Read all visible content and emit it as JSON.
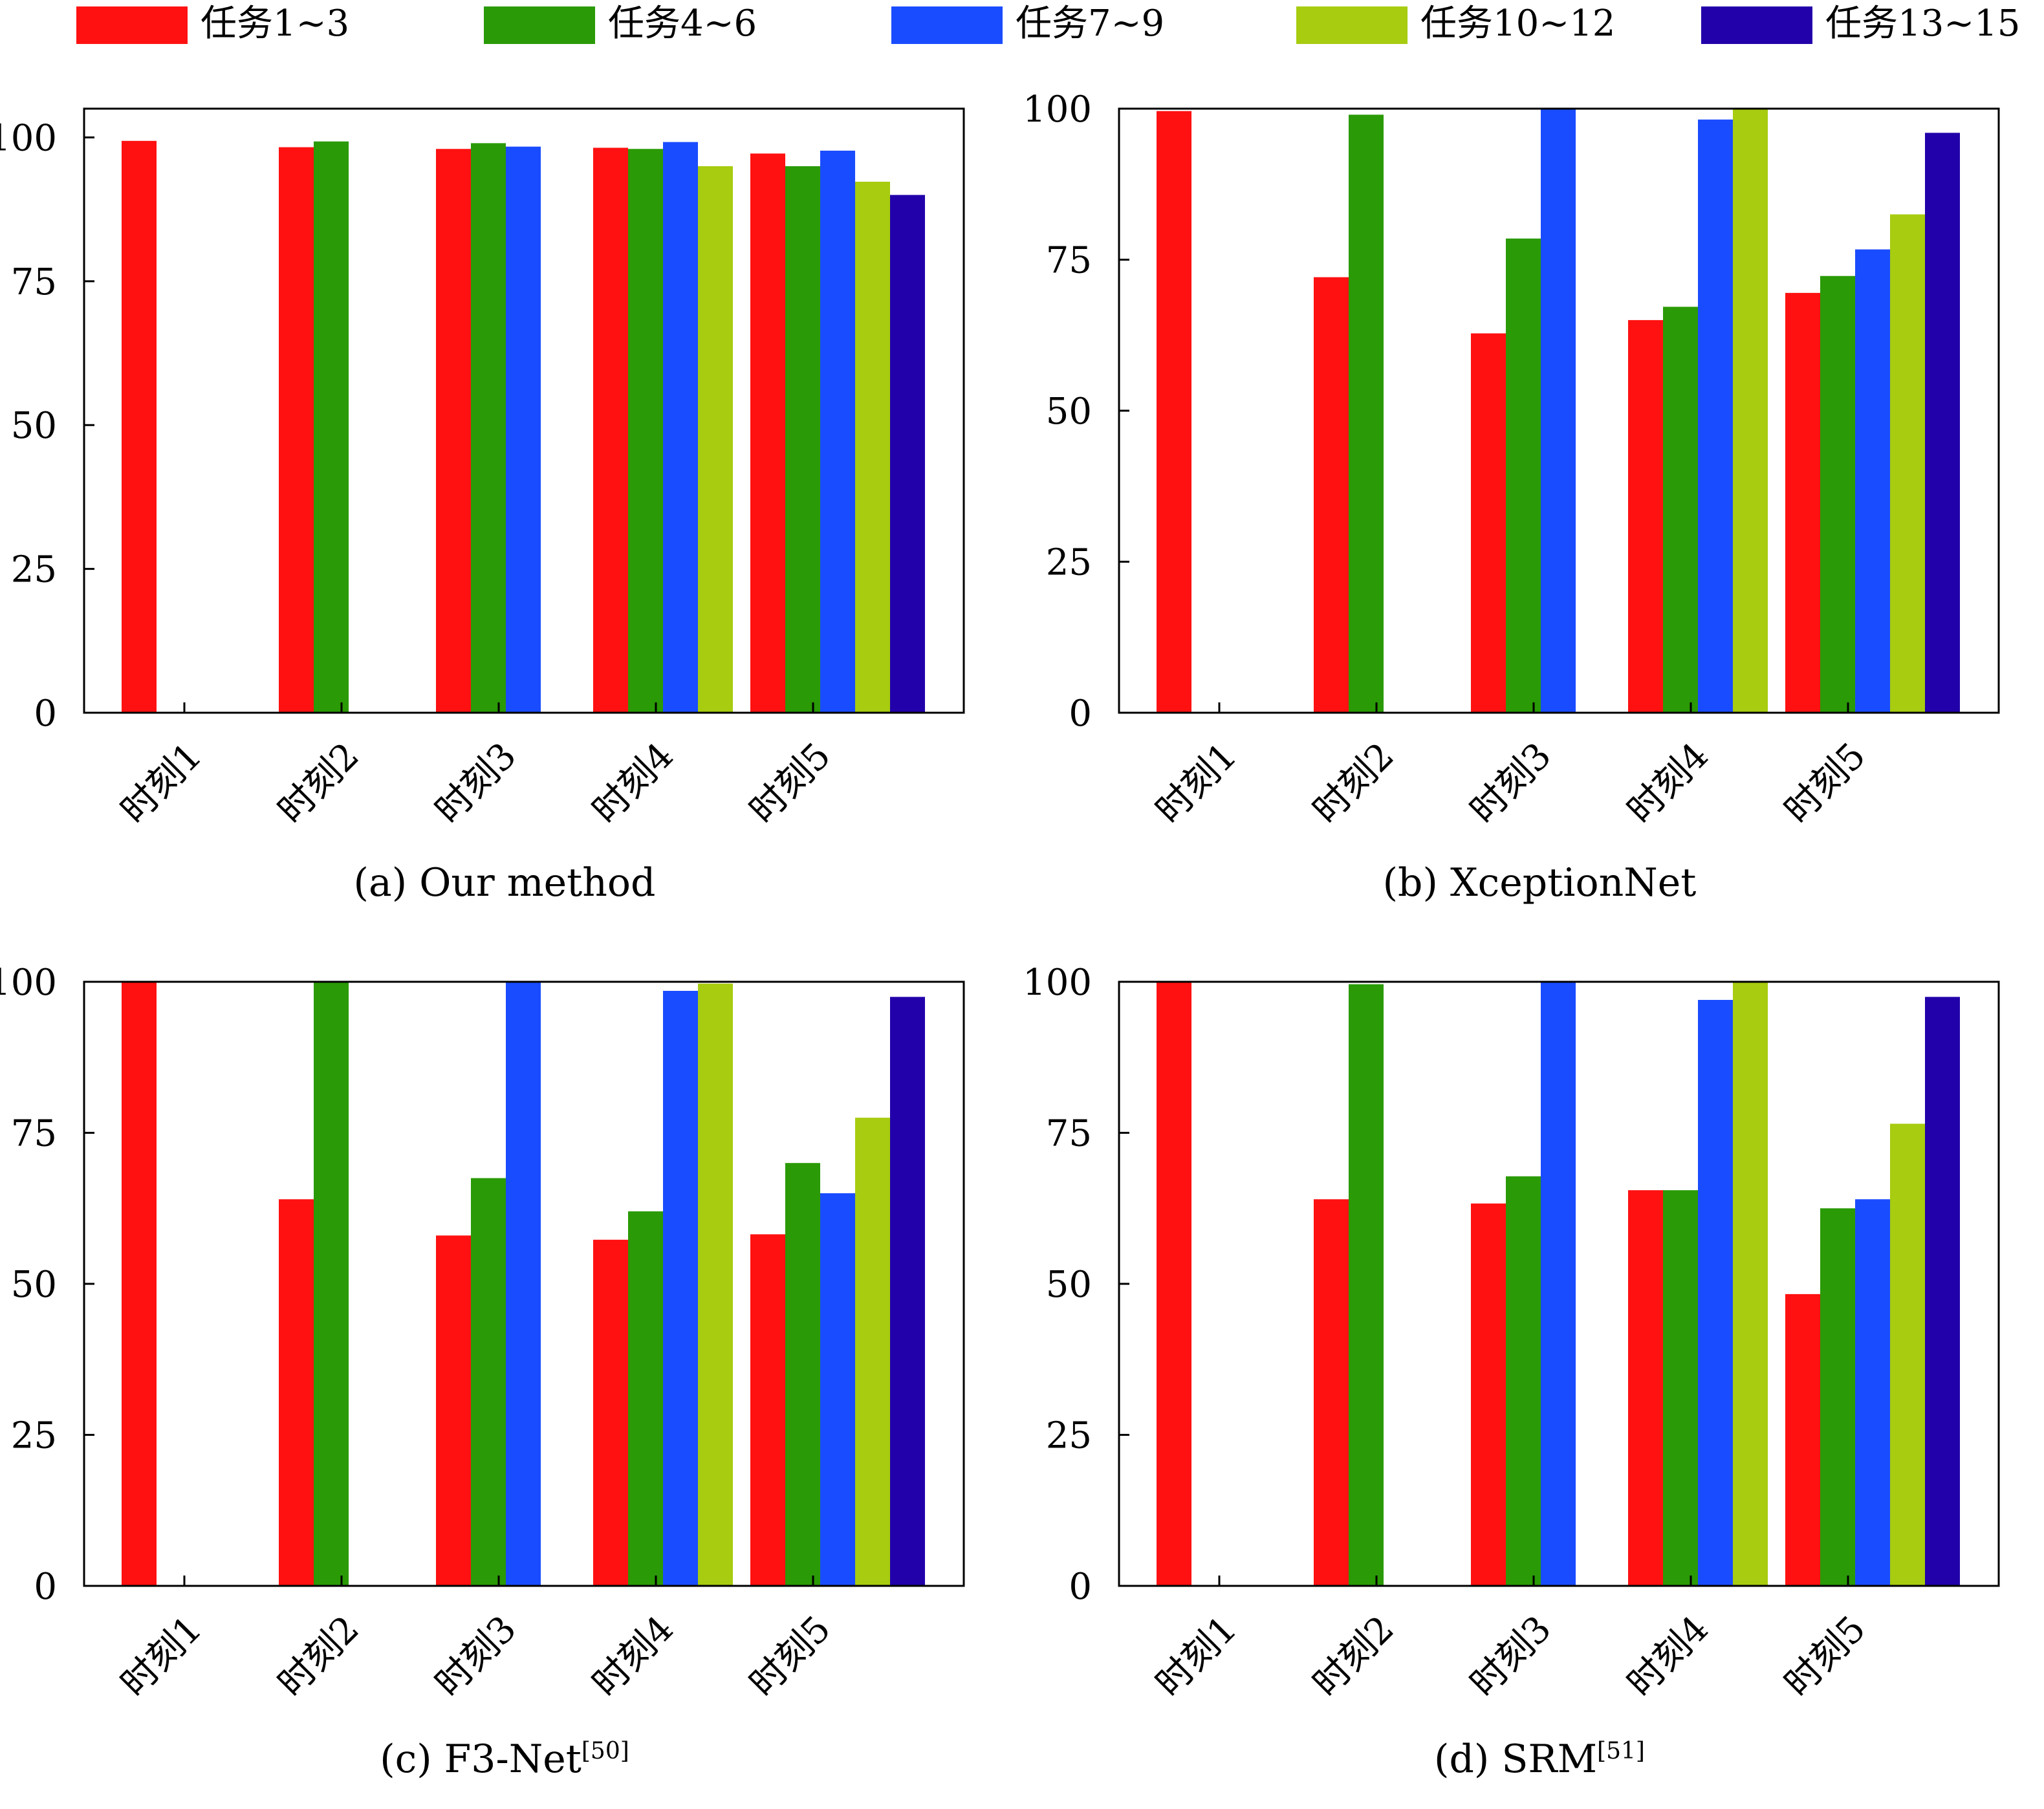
{
  "legend": {
    "items": [
      {
        "label": "任务1~3",
        "color": "#ff1111"
      },
      {
        "label": "任务4~6",
        "color": "#2a9a06"
      },
      {
        "label": "任务7~9",
        "color": "#1a4cff"
      },
      {
        "label": "任务10~12",
        "color": "#a7cc10"
      },
      {
        "label": "任务13~15",
        "color": "#2200aa"
      }
    ]
  },
  "chart_data": [
    {
      "type": "bar",
      "caption": "(a) Our method",
      "caption_sup": "",
      "categories": [
        "时刻1",
        "时刻2",
        "时刻3",
        "时刻4",
        "时刻5"
      ],
      "yticks": [
        "0",
        "25",
        "50",
        "75",
        "100"
      ],
      "ylim": [
        0,
        105
      ],
      "series": [
        {
          "name": "任务1~3",
          "values": [
            99.4,
            98.3,
            98.0,
            98.2,
            97.2
          ]
        },
        {
          "name": "任务4~6",
          "values": [
            null,
            99.3,
            99.0,
            98.0,
            95.0
          ]
        },
        {
          "name": "任务7~9",
          "values": [
            null,
            null,
            98.4,
            99.2,
            97.7
          ]
        },
        {
          "name": "任务10~12",
          "values": [
            null,
            null,
            null,
            95.0,
            92.3
          ]
        },
        {
          "name": "任务13~15",
          "values": [
            null,
            null,
            null,
            null,
            90.0
          ]
        }
      ]
    },
    {
      "type": "bar",
      "caption": "(b) XceptionNet",
      "caption_sup": "",
      "categories": [
        "时刻1",
        "时刻2",
        "时刻3",
        "时刻4",
        "时刻5"
      ],
      "yticks": [
        "0",
        "25",
        "50",
        "75",
        "100"
      ],
      "ylim": [
        0,
        100
      ],
      "series": [
        {
          "name": "任务1~3",
          "values": [
            99.6,
            72.1,
            62.8,
            65.0,
            69.5
          ]
        },
        {
          "name": "任务4~6",
          "values": [
            null,
            99.0,
            78.5,
            67.2,
            72.3
          ]
        },
        {
          "name": "任务7~9",
          "values": [
            null,
            null,
            100.0,
            98.2,
            76.7
          ]
        },
        {
          "name": "任务10~12",
          "values": [
            null,
            null,
            null,
            100.0,
            82.5
          ]
        },
        {
          "name": "任务13~15",
          "values": [
            null,
            null,
            null,
            null,
            96.0
          ]
        }
      ]
    },
    {
      "type": "bar",
      "caption": "(c) F3-Net",
      "caption_sup": "[50]",
      "categories": [
        "时刻1",
        "时刻2",
        "时刻3",
        "时刻4",
        "时刻5"
      ],
      "yticks": [
        "0",
        "25",
        "50",
        "75",
        "100"
      ],
      "ylim": [
        0,
        100
      ],
      "series": [
        {
          "name": "任务1~3",
          "values": [
            100.0,
            64.0,
            58.0,
            57.3,
            58.2
          ]
        },
        {
          "name": "任务4~6",
          "values": [
            null,
            100.0,
            67.5,
            62.0,
            70.0
          ]
        },
        {
          "name": "任务7~9",
          "values": [
            null,
            null,
            100.0,
            98.5,
            65.0
          ]
        },
        {
          "name": "任务10~12",
          "values": [
            null,
            null,
            null,
            99.7,
            77.5
          ]
        },
        {
          "name": "任务13~15",
          "values": [
            null,
            null,
            null,
            null,
            97.5
          ]
        }
      ]
    },
    {
      "type": "bar",
      "caption": "(d) SRM",
      "caption_sup": "[51]",
      "categories": [
        "时刻1",
        "时刻2",
        "时刻3",
        "时刻4",
        "时刻5"
      ],
      "yticks": [
        "0",
        "25",
        "50",
        "75",
        "100"
      ],
      "ylim": [
        0,
        100
      ],
      "series": [
        {
          "name": "任务1~3",
          "values": [
            100.0,
            64.0,
            63.3,
            65.5,
            48.3
          ]
        },
        {
          "name": "任务4~6",
          "values": [
            null,
            99.6,
            67.8,
            65.5,
            62.5
          ]
        },
        {
          "name": "任务7~9",
          "values": [
            null,
            null,
            100.0,
            97.0,
            64.0
          ]
        },
        {
          "name": "任务10~12",
          "values": [
            null,
            null,
            null,
            100.0,
            76.5
          ]
        },
        {
          "name": "任务13~15",
          "values": [
            null,
            null,
            null,
            null,
            97.5
          ]
        }
      ]
    }
  ]
}
